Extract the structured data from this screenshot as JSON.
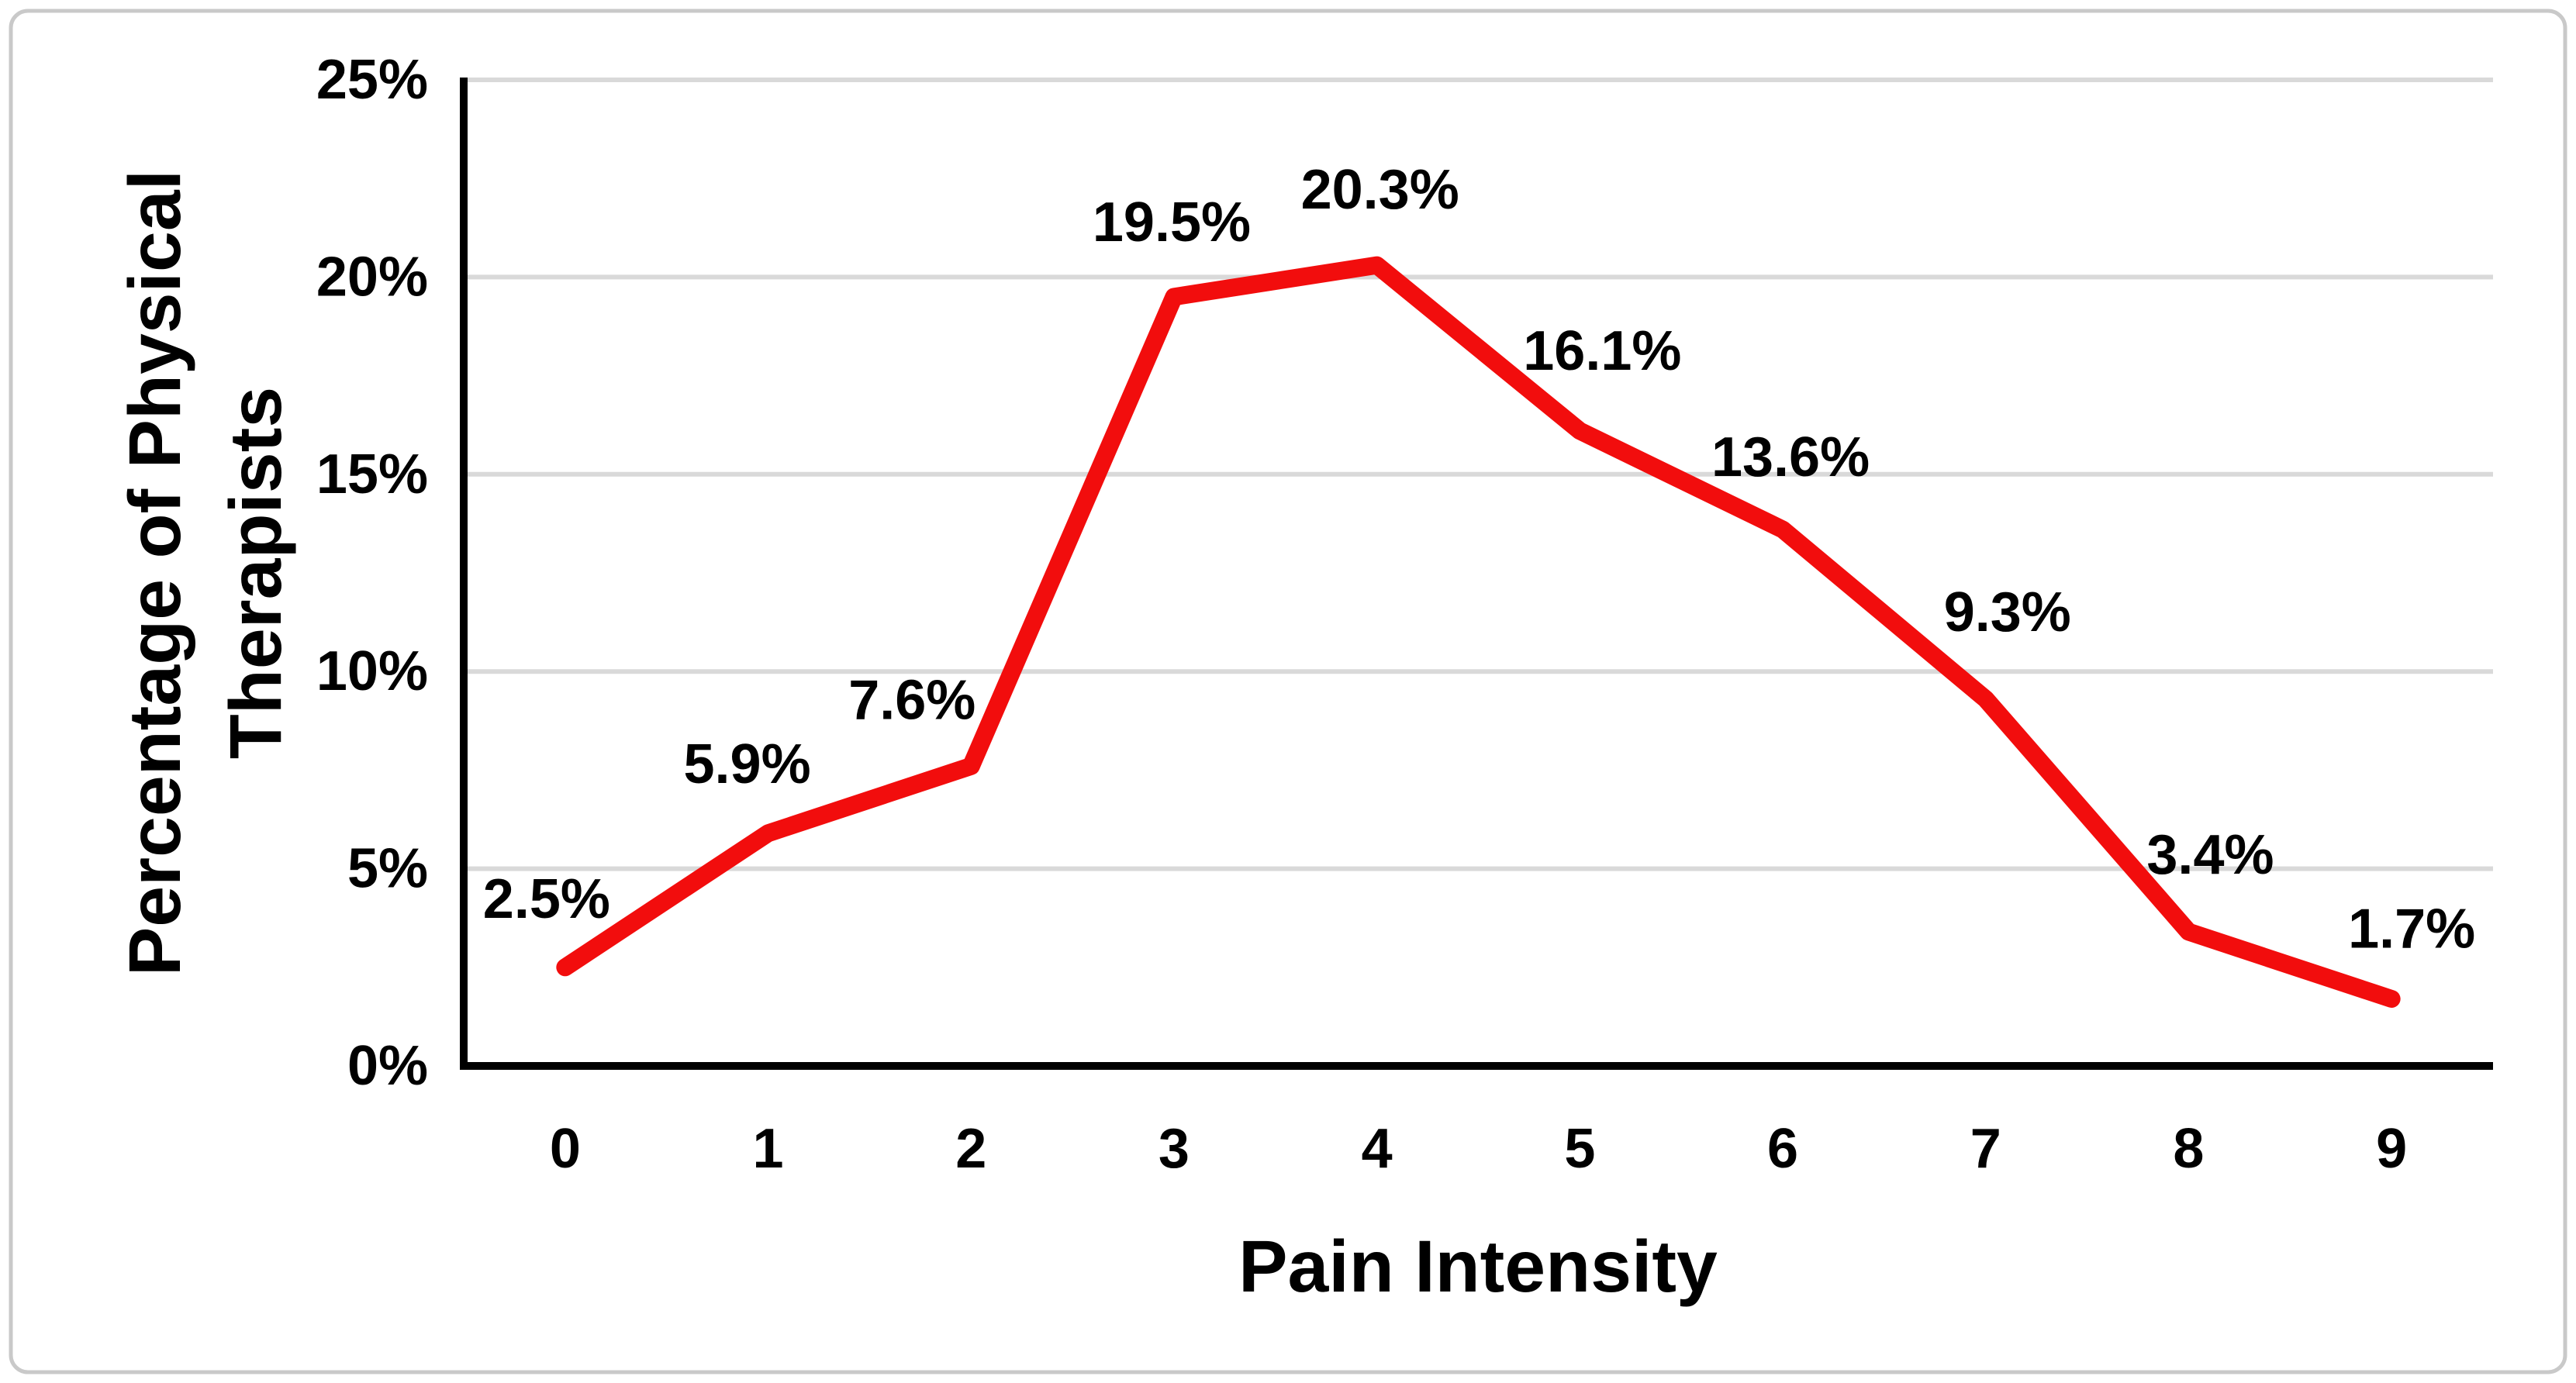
{
  "chart_data": {
    "type": "line",
    "title": "",
    "x": [
      0,
      1,
      2,
      3,
      4,
      5,
      6,
      7,
      8,
      9
    ],
    "categories": [
      "0",
      "1",
      "2",
      "3",
      "4",
      "5",
      "6",
      "7",
      "8",
      "9"
    ],
    "series": [
      {
        "name": "Percentage of Physical Therapists",
        "values": [
          2.5,
          5.9,
          7.6,
          19.5,
          20.3,
          16.1,
          13.6,
          9.3,
          3.4,
          1.7
        ]
      }
    ],
    "data_labels": [
      "2.5%",
      "5.9%",
      "7.6%",
      "19.5%",
      "20.3%",
      "16.1%",
      "13.6%",
      "9.3%",
      "3.4%",
      "1.7%"
    ],
    "xlabel": "Pain Intensity",
    "ylabel": "Percentage of Physical Therapists",
    "ylabel_lines": [
      "Percentage of Physical",
      "Therapists"
    ],
    "y_ticks": [
      0,
      5,
      10,
      15,
      20,
      25
    ],
    "y_tick_labels": [
      "0%",
      "5%",
      "10%",
      "15%",
      "20%",
      "25%"
    ],
    "ylim": [
      0,
      25
    ],
    "grid": "horizontal-only",
    "legend_position": "none",
    "colors": {
      "line": "#F20D0D",
      "gridline": "#D9D9D9",
      "axis": "#000000",
      "text": "#000000",
      "background": "#FFFFFF",
      "frame_border": "#C9C9C9"
    }
  }
}
